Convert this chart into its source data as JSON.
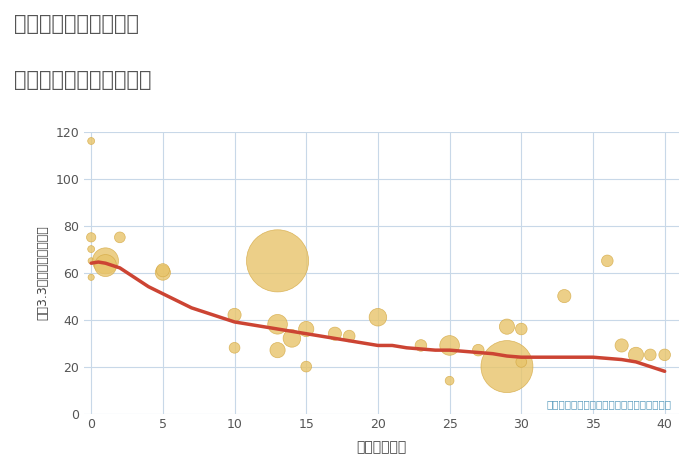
{
  "title_line1": "岐阜県岐阜市柳沢町の",
  "title_line2": "築年数別中古戸建て価格",
  "xlabel": "築年数（年）",
  "ylabel": "坪（3.3㎡）単価（万円）",
  "annotation": "円の大きさは、取引のあった物件面積を示す",
  "xlim": [
    -0.5,
    41
  ],
  "ylim": [
    0,
    120
  ],
  "xticks": [
    0,
    5,
    10,
    15,
    20,
    25,
    30,
    35,
    40
  ],
  "yticks": [
    0,
    20,
    40,
    60,
    80,
    100,
    120
  ],
  "plot_bg_color": "#ffffff",
  "bubble_color": "#e8c46a",
  "bubble_edge_color": "#d4a843",
  "bubble_alpha": 0.8,
  "line_color": "#cc4433",
  "line_width": 2.5,
  "scatter_x": [
    0,
    0,
    0,
    0,
    0,
    1,
    1,
    2,
    5,
    5,
    10,
    10,
    13,
    13,
    13,
    14,
    15,
    15,
    17,
    18,
    20,
    23,
    25,
    25,
    27,
    29,
    29,
    30,
    30,
    33,
    36,
    37,
    38,
    39,
    40
  ],
  "scatter_y": [
    116,
    75,
    70,
    65,
    58,
    65,
    63,
    75,
    60,
    61,
    28,
    42,
    65,
    38,
    27,
    32,
    20,
    36,
    34,
    33,
    41,
    29,
    14,
    29,
    27,
    20,
    37,
    36,
    22,
    50,
    65,
    29,
    25,
    25,
    25
  ],
  "scatter_size": [
    25,
    45,
    25,
    20,
    20,
    350,
    250,
    60,
    120,
    90,
    60,
    90,
    2000,
    200,
    120,
    160,
    60,
    120,
    90,
    70,
    160,
    70,
    40,
    200,
    70,
    1400,
    120,
    70,
    60,
    90,
    70,
    90,
    120,
    70,
    70
  ],
  "trend_x": [
    0,
    0.5,
    1,
    1.5,
    2,
    3,
    4,
    5,
    6,
    7,
    8,
    9,
    10,
    11,
    12,
    13,
    14,
    15,
    16,
    17,
    18,
    19,
    20,
    21,
    22,
    23,
    24,
    25,
    26,
    27,
    28,
    29,
    30,
    31,
    32,
    33,
    34,
    35,
    36,
    37,
    38,
    39,
    40
  ],
  "trend_y": [
    64,
    64.5,
    64,
    63,
    62,
    58,
    54,
    51,
    48,
    45,
    43,
    41,
    39,
    38,
    37,
    36,
    35,
    34,
    33,
    32,
    31,
    30,
    29,
    29,
    28,
    27.5,
    27,
    27,
    26.5,
    26,
    25.5,
    24.5,
    24,
    24,
    24,
    24,
    24,
    24,
    23.5,
    23,
    22,
    20,
    18
  ]
}
